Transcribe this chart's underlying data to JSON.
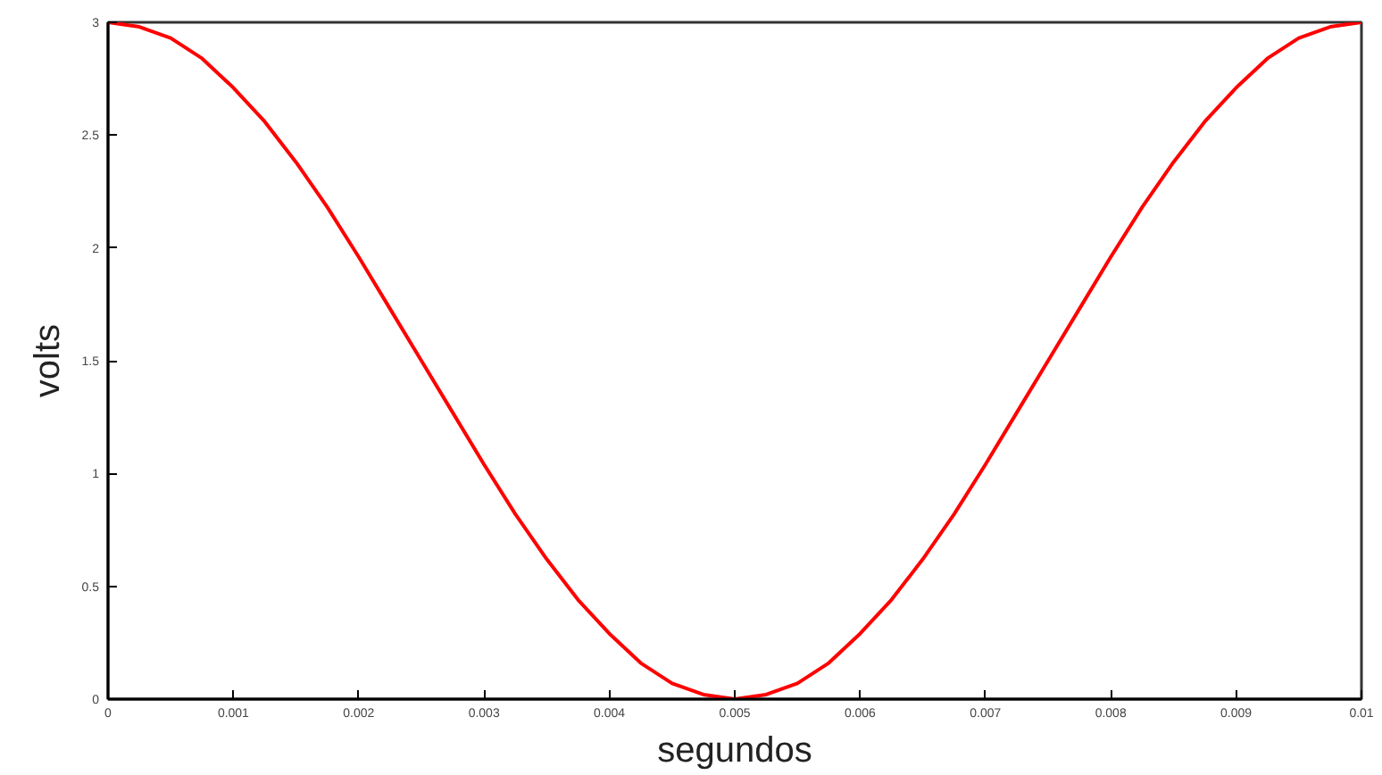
{
  "chart_data": {
    "type": "line",
    "xlabel": "segundos",
    "ylabel": "volts",
    "x": [
      0,
      0.00025,
      0.0005,
      0.00075,
      0.001,
      0.00125,
      0.0015,
      0.00175,
      0.002,
      0.00225,
      0.0025,
      0.00275,
      0.003,
      0.00325,
      0.0035,
      0.00375,
      0.004,
      0.00425,
      0.0045,
      0.00475,
      0.005,
      0.00525,
      0.0055,
      0.00575,
      0.006,
      0.00625,
      0.0065,
      0.00675,
      0.007,
      0.00725,
      0.0075,
      0.00775,
      0.008,
      0.00825,
      0.0085,
      0.00875,
      0.009,
      0.00925,
      0.0095,
      0.00975,
      0.01
    ],
    "series": [
      {
        "color": "#ff0000",
        "values": [
          3,
          2.98,
          2.93,
          2.84,
          2.71,
          2.56,
          2.38,
          2.18,
          1.96,
          1.73,
          1.5,
          1.27,
          1.04,
          0.82,
          0.62,
          0.44,
          0.29,
          0.16,
          0.07,
          0.02,
          0,
          0.02,
          0.07,
          0.16,
          0.29,
          0.44,
          0.62,
          0.82,
          1.04,
          1.27,
          1.5,
          1.73,
          1.96,
          2.18,
          2.38,
          2.56,
          2.71,
          2.84,
          2.93,
          2.98,
          3
        ]
      }
    ],
    "xlim": [
      0,
      0.01
    ],
    "ylim": [
      0,
      3
    ],
    "xticks": [
      0,
      0.001,
      0.002,
      0.003,
      0.004,
      0.005,
      0.006,
      0.007,
      0.008,
      0.009,
      0.01
    ],
    "yticks": [
      0,
      0.5,
      1,
      1.5,
      2,
      2.5,
      3
    ],
    "grid": false,
    "marker": "none",
    "line_style": "solid"
  }
}
